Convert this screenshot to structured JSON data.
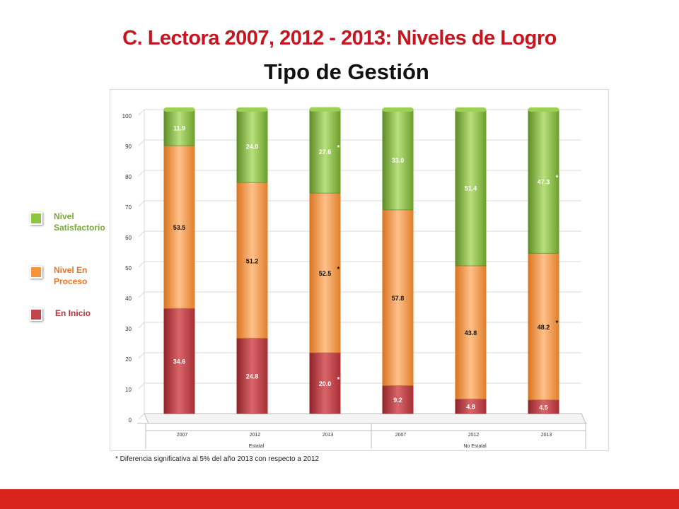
{
  "title": "C. Lectora 2007, 2012 - 2013: Niveles de Logro",
  "subtitle": "Tipo de Gestión",
  "note": "* Diferencia significativa al 5% del año 2013 con respecto a 2012",
  "legend": [
    {
      "label": "Nivel Satisfactorio",
      "color": "#8dc63f",
      "text_color": "#7aa83a"
    },
    {
      "label": "Nivel En Proceso",
      "color": "#f7943b",
      "text_color": "#e8742a"
    },
    {
      "label": "En Inicio",
      "color": "#c0464b",
      "text_color": "#b8343a"
    }
  ],
  "chart_data": {
    "type": "bar",
    "stacked": true,
    "ylim": [
      0,
      100
    ],
    "yticks": [
      0,
      10,
      20,
      30,
      40,
      50,
      60,
      70,
      80,
      90,
      100
    ],
    "grid": true,
    "legend_position": "left",
    "groups": [
      {
        "label": "Estatal",
        "categories": [
          "2007",
          "2012",
          "2013"
        ]
      },
      {
        "label": "No Estatal",
        "categories": [
          "2007",
          "2012",
          "2013"
        ]
      }
    ],
    "categories": [
      "2007",
      "2012",
      "2013",
      "2007",
      "2012",
      "2013"
    ],
    "series": [
      {
        "name": "En Inicio",
        "color": "#c0464b",
        "values": [
          34.6,
          24.8,
          20.0,
          9.2,
          4.8,
          4.5
        ],
        "significant": [
          false,
          false,
          true,
          false,
          false,
          false
        ]
      },
      {
        "name": "Nivel En Proceso",
        "color": "#f7943b",
        "values": [
          53.5,
          51.2,
          52.5,
          57.8,
          43.8,
          48.2
        ],
        "significant": [
          false,
          false,
          true,
          false,
          false,
          true
        ]
      },
      {
        "name": "Nivel Satisfactorio",
        "color": "#7fb13a",
        "values": [
          11.9,
          24.0,
          27.6,
          33.0,
          51.4,
          47.3
        ],
        "significant": [
          false,
          false,
          true,
          false,
          false,
          true
        ]
      }
    ],
    "significance_mark": "*"
  },
  "colors": {
    "title": "#c8141e",
    "footer_bar": "#d9231d"
  }
}
